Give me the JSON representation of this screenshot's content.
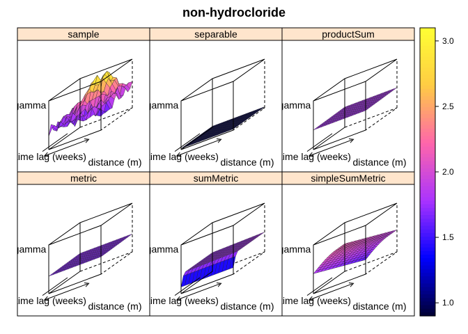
{
  "chart_data": {
    "type": "wireframe-3d-panels",
    "title": "non-hydrocloride",
    "axis_labels": {
      "x": "distance (m)",
      "y": "time lag (weeks)",
      "z": "gamma"
    },
    "colorkey": {
      "range": [
        0.9,
        3.1
      ],
      "ticks": [
        "1.0",
        "1.5",
        "2.0",
        "2.5",
        "3.0"
      ],
      "tick_values": [
        1.0,
        1.5,
        2.0,
        2.5,
        3.0
      ],
      "colors": [
        "#000033",
        "#0000ff",
        "#aa33ff",
        "#ff66aa",
        "#ffcc44",
        "#ffff33"
      ]
    },
    "strip_color": "#ffe5cc",
    "panels": [
      {
        "name": "sample",
        "level": 1.75,
        "shape": "noisy"
      },
      {
        "name": "separable",
        "level": 0.95,
        "shape": "flat-low"
      },
      {
        "name": "productSum",
        "level": 1.8,
        "shape": "flat"
      },
      {
        "name": "metric",
        "level": 1.7,
        "shape": "flat"
      },
      {
        "name": "sumMetric",
        "level": 1.75,
        "shape": "step"
      },
      {
        "name": "simpleSumMetric",
        "level": 1.9,
        "shape": "rising"
      }
    ]
  }
}
